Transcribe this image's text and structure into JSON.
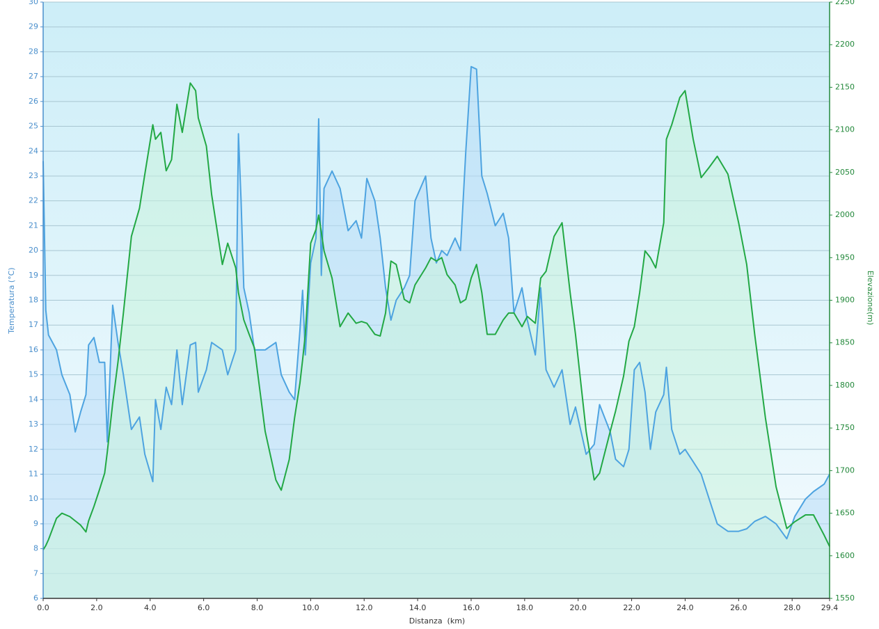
{
  "chart_data": {
    "type": "area",
    "xlabel": "Distanza  (km)",
    "ylabel": "Temperatura (°C)",
    "y2label": "Elevazione(m)",
    "x": [
      0,
      0.1,
      0.2,
      0.5,
      0.7,
      1.0,
      1.2,
      1.4,
      1.6,
      1.7,
      1.9,
      2.1,
      2.3,
      2.4,
      2.6,
      2.8,
      3.0,
      3.3,
      3.6,
      3.8,
      4.1,
      4.2,
      4.4,
      4.6,
      4.8,
      5.0,
      5.2,
      5.5,
      5.7,
      5.8,
      6.1,
      6.3,
      6.7,
      6.9,
      7.2,
      7.3,
      7.4,
      7.5,
      7.7,
      7.9,
      8.3,
      8.7,
      8.9,
      9.2,
      9.4,
      9.6,
      9.7,
      9.8,
      10.0,
      10.2,
      10.3,
      10.4,
      10.5,
      10.8,
      11.1,
      11.4,
      11.7,
      11.9,
      12.1,
      12.4,
      12.6,
      12.8,
      13.0,
      13.2,
      13.5,
      13.7,
      13.9,
      14.3,
      14.5,
      14.7,
      14.9,
      15.1,
      15.4,
      15.6,
      15.8,
      16.0,
      16.2,
      16.4,
      16.6,
      16.9,
      17.2,
      17.4,
      17.6,
      17.9,
      18.1,
      18.4,
      18.6,
      18.8,
      19.1,
      19.4,
      19.7,
      19.9,
      20.3,
      20.6,
      20.8,
      21.2,
      21.4,
      21.7,
      21.9,
      22.1,
      22.3,
      22.5,
      22.7,
      22.9,
      23.2,
      23.3,
      23.5,
      23.8,
      24.0,
      24.3,
      24.6,
      24.9,
      25.2,
      25.6,
      26.0,
      26.3,
      26.6,
      27.0,
      27.4,
      27.8,
      28.1,
      28.5,
      28.8,
      29.2,
      29.4
    ],
    "series": [
      {
        "name": "Temperatura",
        "color": "#4da3e0",
        "fill": "#b8dcf7",
        "axis": "y",
        "values": [
          23.6,
          17.6,
          16.6,
          16,
          15,
          14.2,
          12.7,
          13.5,
          14.2,
          16.2,
          16.5,
          15.5,
          15.5,
          12.3,
          17.8,
          16.3,
          15,
          12.8,
          13.3,
          11.8,
          10.7,
          14,
          12.8,
          14.5,
          13.8,
          16,
          13.8,
          16.2,
          16.3,
          14.3,
          15.2,
          16.3,
          16,
          15,
          16,
          24.7,
          22,
          18.5,
          17.5,
          16,
          16,
          16.3,
          15,
          14.3,
          14,
          16.8,
          18.4,
          15.8,
          19.5,
          20.5,
          25.3,
          19,
          22.5,
          23.2,
          22.5,
          20.8,
          21.2,
          20.5,
          22.9,
          22,
          20.5,
          18.5,
          17.2,
          18,
          18.5,
          19,
          22,
          23,
          20.5,
          19.5,
          20,
          19.8,
          20.5,
          20,
          24,
          27.4,
          27.3,
          23,
          22.3,
          21,
          21.5,
          20.5,
          17.5,
          18.5,
          17.2,
          15.8,
          18.5,
          15.2,
          14.5,
          15.2,
          13,
          13.7,
          11.8,
          12.2,
          13.8,
          12.7,
          11.6,
          11.3,
          12,
          15.2,
          15.5,
          14.3,
          12,
          13.5,
          14.2,
          15.3,
          12.8,
          11.8,
          12,
          11.5,
          11,
          10,
          9,
          8.7,
          8.7,
          8.8,
          9.1,
          9.3,
          9,
          8.4,
          9.3,
          10,
          10.3,
          10.6,
          11
        ]
      },
      {
        "name": "Elevazione",
        "color": "#22a844",
        "fill": "#c9f2dc",
        "axis": "y2",
        "values": [
          1607,
          1612,
          1619,
          1644,
          1650,
          1646,
          1641,
          1636,
          1628,
          1641,
          1658,
          1677,
          1697,
          1722,
          1779,
          1828,
          1885,
          1975,
          2008,
          2048,
          2106,
          2089,
          2097,
          2052,
          2065,
          2130,
          2097,
          2155,
          2146,
          2114,
          2081,
          2024,
          1942,
          1967,
          1938,
          1909,
          1893,
          1877,
          1860,
          1844,
          1746,
          1689,
          1677,
          1713,
          1762,
          1803,
          1830,
          1860,
          1967,
          1983,
          2000,
          1980,
          1958,
          1926,
          1869,
          1885,
          1873,
          1875,
          1873,
          1860,
          1858,
          1885,
          1946,
          1942,
          1901,
          1897,
          1918,
          1938,
          1950,
          1946,
          1950,
          1930,
          1918,
          1897,
          1901,
          1926,
          1942,
          1909,
          1860,
          1860,
          1877,
          1885,
          1885,
          1869,
          1881,
          1873,
          1926,
          1934,
          1975,
          1991,
          1909,
          1860,
          1746,
          1689,
          1697,
          1746,
          1770,
          1811,
          1852,
          1869,
          1909,
          1958,
          1950,
          1938,
          1991,
          2089,
          2106,
          2138,
          2146,
          2089,
          2044,
          2056,
          2069,
          2048,
          1991,
          1942,
          1860,
          1762,
          1681,
          1632,
          1640,
          1648,
          1648,
          1624,
          1611
        ]
      }
    ],
    "xlim": [
      0,
      29.4
    ],
    "xticks": [
      {
        "value": 0,
        "label": "0.0"
      },
      {
        "value": 2,
        "label": "2.0"
      },
      {
        "value": 4,
        "label": "4.0"
      },
      {
        "value": 6,
        "label": "6.0"
      },
      {
        "value": 8,
        "label": "8.0"
      },
      {
        "value": 10,
        "label": "10.0"
      },
      {
        "value": 12,
        "label": "12.0"
      },
      {
        "value": 14,
        "label": "14.0"
      },
      {
        "value": 16,
        "label": "16.0"
      },
      {
        "value": 18,
        "label": "18.0"
      },
      {
        "value": 20,
        "label": "20.0"
      },
      {
        "value": 22,
        "label": "22.0"
      },
      {
        "value": 24,
        "label": "24.0"
      },
      {
        "value": 26,
        "label": "26.0"
      },
      {
        "value": 28,
        "label": "28.0"
      },
      29.4
    ],
    "ylim": [
      6,
      30
    ],
    "yticks": [
      6,
      7,
      8,
      9,
      10,
      11,
      12,
      13,
      14,
      15,
      16,
      17,
      18,
      19,
      20,
      21,
      22,
      23,
      24,
      25,
      26,
      27,
      28,
      29,
      30
    ],
    "y2lim": [
      1550,
      2250
    ],
    "y2ticks": [
      1550,
      1600,
      1650,
      1700,
      1750,
      1800,
      1850,
      1900,
      1950,
      2000,
      2050,
      2100,
      2150,
      2200,
      2250
    ],
    "grid": true
  }
}
